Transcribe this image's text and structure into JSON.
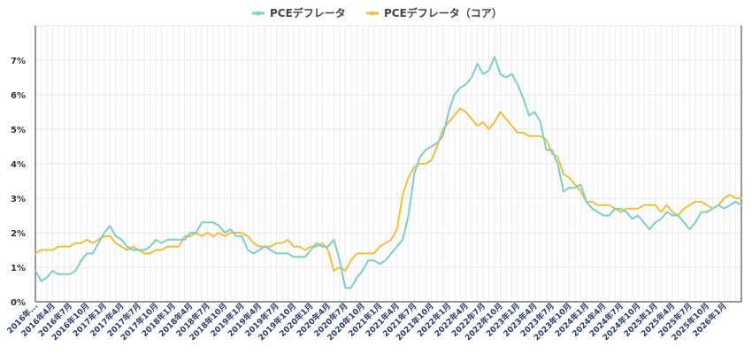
{
  "chart_data": {
    "type": "line",
    "title": "",
    "xlabel": "",
    "ylabel": "",
    "ylim": [
      0,
      8
    ],
    "y_ticks": [
      "0%",
      "1%",
      "2%",
      "3%",
      "4%",
      "5%",
      "6%",
      "7%"
    ],
    "grid": true,
    "legend_position": "top-center",
    "x_tick_labels": [
      "2016年...",
      "2016年4月",
      "2016年7月",
      "2016年10月",
      "2017年1月",
      "2017年4月",
      "2017年7月",
      "2017年10月",
      "2018年1月",
      "2018年4月",
      "2018年7月",
      "2018年10月",
      "2019年1月",
      "2019年4月",
      "2019年7月",
      "2019年10月",
      "2020年1月",
      "2020年4月",
      "2020年7月",
      "2020年10月",
      "2021年1月",
      "2021年4月",
      "2021年7月",
      "2021年10月",
      "2022年1月",
      "2022年4月",
      "2022年7月",
      "2022年10月",
      "2023年1月",
      "2023年4月",
      "2023年7月",
      "2023年10月",
      "2024年1月",
      "2024年4月",
      "2024年7月",
      "2024年10月",
      "2025年1月",
      "2025年4月",
      "2025年7月",
      "2025年10月",
      "2026年1月"
    ],
    "series": [
      {
        "name": "PCEデフレータ",
        "color": "#7ecdc8",
        "values": [
          0.9,
          0.6,
          0.7,
          0.9,
          0.8,
          0.8,
          0.8,
          0.9,
          1.2,
          1.4,
          1.4,
          1.7,
          2.0,
          2.2,
          1.9,
          1.8,
          1.6,
          1.5,
          1.5,
          1.5,
          1.6,
          1.8,
          1.7,
          1.8,
          1.8,
          1.8,
          1.8,
          2.0,
          2.0,
          2.3,
          2.3,
          2.3,
          2.2,
          2.0,
          2.1,
          1.9,
          1.9,
          1.5,
          1.4,
          1.5,
          1.6,
          1.5,
          1.4,
          1.4,
          1.4,
          1.3,
          1.3,
          1.3,
          1.5,
          1.7,
          1.6,
          1.6,
          1.8,
          1.2,
          0.4,
          0.4,
          0.7,
          0.9,
          1.2,
          1.2,
          1.1,
          1.2,
          1.4,
          1.6,
          1.8,
          2.5,
          3.7,
          4.2,
          4.4,
          4.5,
          4.6,
          4.8,
          5.5,
          6.0,
          6.2,
          6.3,
          6.5,
          6.9,
          6.6,
          6.7,
          7.1,
          6.6,
          6.5,
          6.6,
          6.3,
          5.9,
          5.4,
          5.5,
          5.2,
          4.4,
          4.4,
          4.0,
          3.2,
          3.3,
          3.3,
          3.4,
          2.9,
          2.7,
          2.6,
          2.5,
          2.5,
          2.7,
          2.7,
          2.6,
          2.4,
          2.5,
          2.3,
          2.1,
          2.3,
          2.4,
          2.6,
          2.5,
          2.5,
          2.3,
          2.1,
          2.3,
          2.6,
          2.6,
          2.7,
          2.8,
          2.7,
          2.8,
          2.9,
          2.8
        ]
      },
      {
        "name": "PCEデフレータ（コア）",
        "color": "#eebf45",
        "values": [
          1.4,
          1.5,
          1.5,
          1.5,
          1.6,
          1.6,
          1.6,
          1.7,
          1.7,
          1.8,
          1.7,
          1.8,
          1.9,
          1.9,
          1.7,
          1.6,
          1.5,
          1.6,
          1.5,
          1.4,
          1.4,
          1.5,
          1.5,
          1.6,
          1.6,
          1.6,
          1.9,
          1.9,
          2.0,
          1.9,
          2.0,
          1.9,
          2.0,
          1.9,
          2.0,
          2.0,
          2.0,
          1.9,
          1.7,
          1.6,
          1.6,
          1.6,
          1.7,
          1.7,
          1.8,
          1.6,
          1.6,
          1.5,
          1.6,
          1.6,
          1.7,
          1.5,
          0.9,
          1.0,
          0.9,
          1.2,
          1.4,
          1.4,
          1.4,
          1.4,
          1.6,
          1.7,
          1.8,
          2.1,
          3.1,
          3.6,
          3.9,
          4.0,
          4.0,
          4.1,
          4.5,
          5.0,
          5.2,
          5.4,
          5.6,
          5.5,
          5.3,
          5.1,
          5.2,
          5.0,
          5.2,
          5.5,
          5.3,
          5.1,
          4.9,
          4.9,
          4.8,
          4.8,
          4.8,
          4.7,
          4.3,
          4.2,
          3.7,
          3.6,
          3.4,
          3.2,
          2.9,
          2.9,
          2.8,
          2.8,
          2.8,
          2.7,
          2.6,
          2.7,
          2.7,
          2.7,
          2.8,
          2.8,
          2.8,
          2.6,
          2.8,
          2.6,
          2.5,
          2.7,
          2.8,
          2.9,
          2.9,
          2.8,
          2.7,
          2.8,
          3.0,
          3.1,
          3.0,
          3.0
        ]
      }
    ]
  }
}
